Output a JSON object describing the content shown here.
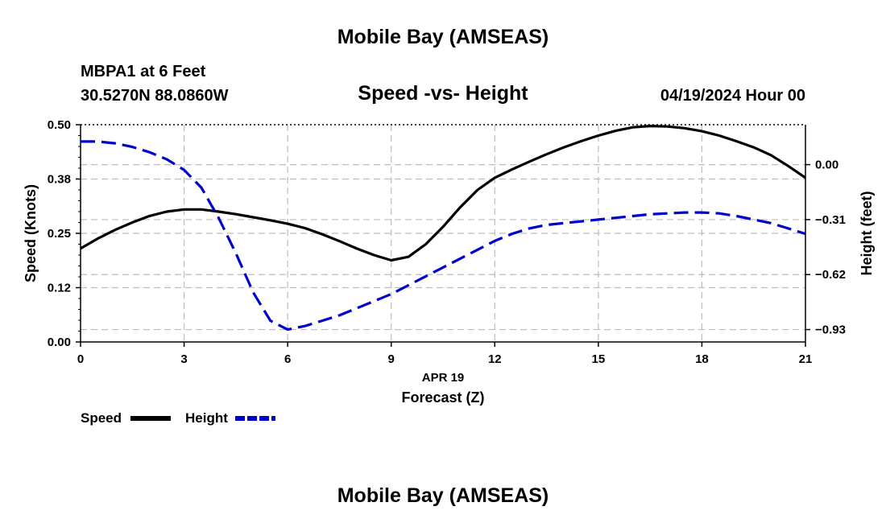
{
  "page": {
    "title": "Mobile Bay (AMSEAS)",
    "footer_title": "Mobile Bay (AMSEAS)"
  },
  "header": {
    "station": "MBPA1 at 6 Feet",
    "coordinates": "30.5270N  88.0860W",
    "plot_title": "Speed -vs- Height",
    "datetime": "04/19/2024 Hour 00"
  },
  "chart_data": {
    "type": "line",
    "title": "Speed -vs- Height",
    "xlabel": "Forecast (Z)",
    "x_sublabel": "APR 19",
    "ylabel": "Speed (Knots)",
    "y2label": "Height (feet)",
    "xlim": [
      0,
      21
    ],
    "ylim": [
      0,
      0.5
    ],
    "y2lim": [
      -1.0,
      0.225
    ],
    "x_ticks": [
      0,
      3,
      6,
      9,
      12,
      15,
      18,
      21
    ],
    "x_tick_labels": [
      "0",
      "3",
      "6",
      "9",
      "12",
      "15",
      "18",
      "21"
    ],
    "y_ticks": [
      0.0,
      0.125,
      0.25,
      0.375,
      0.5
    ],
    "y_tick_labels": [
      "0.00",
      "0.12",
      "0.25",
      "0.38",
      "0.50"
    ],
    "y2_ticks": [
      -0.93,
      -0.62,
      -0.31,
      0.0
    ],
    "y2_tick_labels": [
      "−0.93",
      "−0.62",
      "−0.31",
      "0.00"
    ],
    "grid": true,
    "legend_position": "bottom-left",
    "x": [
      0,
      0.5,
      1,
      1.5,
      2,
      2.5,
      3,
      3.5,
      4,
      4.5,
      5,
      5.5,
      6,
      6.5,
      7,
      7.5,
      8,
      8.5,
      9,
      9.5,
      10,
      10.5,
      11,
      11.5,
      12,
      12.5,
      13,
      13.5,
      14,
      14.5,
      15,
      15.5,
      16,
      16.5,
      17,
      17.5,
      18,
      18.5,
      19,
      19.5,
      20,
      20.5,
      21
    ],
    "series": [
      {
        "name": "Speed",
        "axis": "left",
        "color": "#000000",
        "style": "solid",
        "values": [
          0.215,
          0.238,
          0.258,
          0.275,
          0.29,
          0.3,
          0.305,
          0.305,
          0.3,
          0.294,
          0.287,
          0.28,
          0.272,
          0.262,
          0.248,
          0.232,
          0.215,
          0.2,
          0.188,
          0.196,
          0.225,
          0.265,
          0.31,
          0.35,
          0.378,
          0.397,
          0.415,
          0.432,
          0.448,
          0.462,
          0.475,
          0.486,
          0.494,
          0.497,
          0.496,
          0.492,
          0.485,
          0.475,
          0.462,
          0.448,
          0.43,
          0.405,
          0.378
        ]
      },
      {
        "name": "Height",
        "axis": "right",
        "color": "#0000cc",
        "style": "dashed",
        "values": [
          0.13,
          0.13,
          0.12,
          0.1,
          0.07,
          0.03,
          -0.03,
          -0.13,
          -0.3,
          -0.5,
          -0.72,
          -0.88,
          -0.93,
          -0.91,
          -0.88,
          -0.85,
          -0.81,
          -0.77,
          -0.73,
          -0.68,
          -0.63,
          -0.58,
          -0.53,
          -0.48,
          -0.43,
          -0.39,
          -0.36,
          -0.34,
          -0.33,
          -0.32,
          -0.31,
          -0.3,
          -0.29,
          -0.28,
          -0.275,
          -0.27,
          -0.27,
          -0.275,
          -0.29,
          -0.31,
          -0.33,
          -0.36,
          -0.39
        ]
      }
    ]
  },
  "legend": {
    "speed_label": "Speed",
    "height_label": "Height"
  },
  "colors": {
    "speed": "#000000",
    "height": "#0000cc",
    "grid": "#bdbdbd"
  }
}
